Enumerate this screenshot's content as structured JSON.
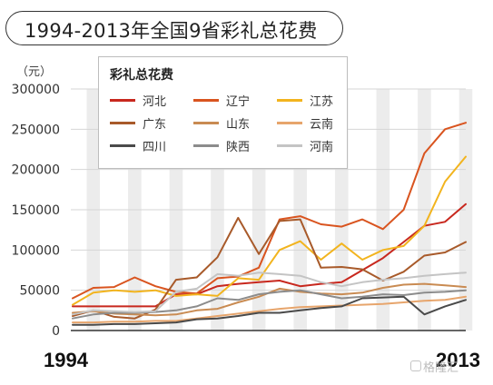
{
  "header": {
    "title": "1994-2013年全国9省彩礼总花费"
  },
  "chart_data": {
    "type": "line",
    "title": "1994-2013年全国9省彩礼总花费",
    "legend_title": "彩礼总花费",
    "legend_position": "top-left",
    "unit": "（元）",
    "x_start_label": "1994",
    "x_end_label": "2013",
    "x": [
      1994,
      1995,
      1996,
      1997,
      1998,
      1999,
      2000,
      2001,
      2002,
      2003,
      2004,
      2005,
      2006,
      2007,
      2008,
      2009,
      2010,
      2011,
      2012,
      2013
    ],
    "ylim": [
      0,
      300000
    ],
    "yticks": [
      0,
      50000,
      100000,
      150000,
      200000,
      250000,
      300000
    ],
    "ytick_labels": [
      "0",
      "50000",
      "100000",
      "150000",
      "200000",
      "250000",
      "300000"
    ],
    "grid": "vertical alternating bands",
    "series": [
      {
        "name": "河北",
        "color": "#c8281e",
        "values": [
          30000,
          30000,
          30000,
          30000,
          30000,
          45000,
          45000,
          55000,
          58000,
          60000,
          62000,
          55000,
          58000,
          60000,
          75000,
          90000,
          110000,
          130000,
          135000,
          157000
        ]
      },
      {
        "name": "辽宁",
        "color": "#d9541f",
        "values": [
          40000,
          53000,
          54000,
          66000,
          55000,
          48000,
          46000,
          65000,
          67000,
          78000,
          138000,
          142000,
          132000,
          129000,
          138000,
          126000,
          150000,
          220000,
          250000,
          258000
        ]
      },
      {
        "name": "江苏",
        "color": "#f2b41e",
        "values": [
          32000,
          47000,
          50000,
          48000,
          50000,
          43000,
          45000,
          43000,
          65000,
          63000,
          100000,
          111000,
          88000,
          108000,
          88000,
          100000,
          105000,
          130000,
          185000,
          216000
        ]
      },
      {
        "name": "广东",
        "color": "#a85a2a",
        "values": [
          18000,
          25000,
          17000,
          15000,
          26000,
          63000,
          66000,
          91000,
          140000,
          95000,
          136000,
          138000,
          78000,
          79000,
          76000,
          62000,
          73000,
          93000,
          97000,
          110000
        ]
      },
      {
        "name": "山东",
        "color": "#c98b52",
        "values": [
          22000,
          24000,
          21000,
          20000,
          19000,
          20000,
          25000,
          27000,
          35000,
          42000,
          52000,
          48000,
          46000,
          45000,
          47000,
          53000,
          57000,
          58000,
          56000,
          54000
        ]
      },
      {
        "name": "云南",
        "color": "#e7a56c",
        "values": [
          10000,
          10000,
          11000,
          11000,
          12000,
          12000,
          15000,
          18000,
          21000,
          24000,
          27000,
          29000,
          30000,
          31000,
          32000,
          33000,
          35000,
          37000,
          38000,
          42000
        ]
      },
      {
        "name": "四川",
        "color": "#4a4a4a",
        "values": [
          7000,
          7000,
          8000,
          8000,
          9000,
          10000,
          14000,
          15000,
          18000,
          22000,
          22000,
          25000,
          28000,
          30000,
          40000,
          41000,
          42000,
          20000,
          30000,
          38000
        ]
      },
      {
        "name": "陕西",
        "color": "#8c8c8c",
        "values": [
          15000,
          20000,
          22000,
          22000,
          23000,
          25000,
          30000,
          40000,
          38000,
          45000,
          48000,
          50000,
          45000,
          40000,
          42000,
          45000,
          44000,
          47000,
          48000,
          50000
        ]
      },
      {
        "name": "河南",
        "color": "#c4c4c4",
        "values": [
          20000,
          25000,
          24000,
          23000,
          24000,
          48000,
          52000,
          70000,
          68000,
          72000,
          70000,
          68000,
          60000,
          55000,
          60000,
          63000,
          65000,
          68000,
          70000,
          72000
        ]
      }
    ]
  },
  "watermark": "格隆汇"
}
